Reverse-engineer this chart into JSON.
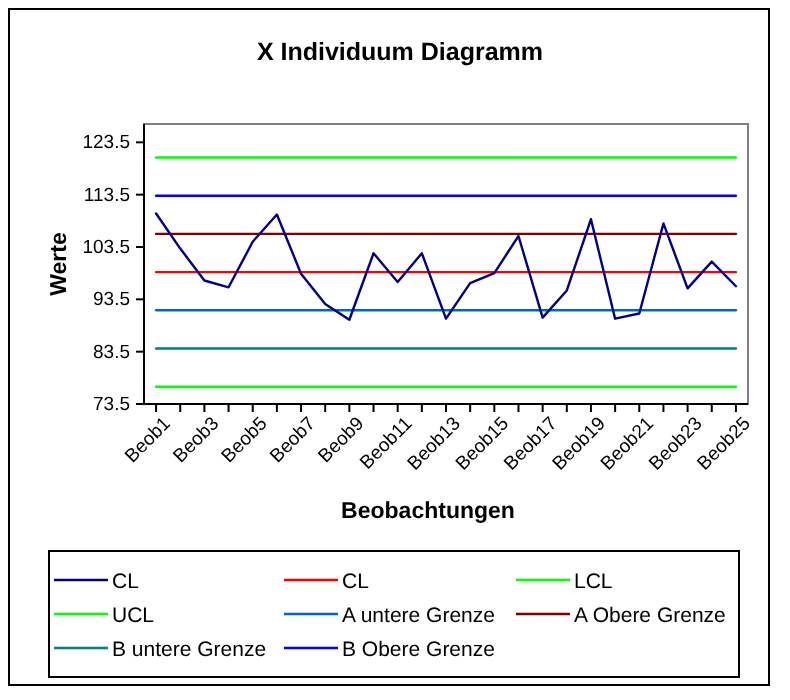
{
  "chart_data": {
    "type": "line",
    "title": "X Individuum Diagramm",
    "xlabel": "Beobachtungen",
    "ylabel": "Werte",
    "categories": [
      "Beob1",
      null,
      "Beob3",
      null,
      "Beob5",
      null,
      "Beob7",
      null,
      "Beob9",
      null,
      "Beob11",
      null,
      "Beob13",
      null,
      "Beob15",
      null,
      "Beob17",
      null,
      "Beob19",
      null,
      "Beob21",
      null,
      "Beob23",
      null,
      "Beob25"
    ],
    "series": [
      {
        "name": "CL",
        "color": "#000080",
        "values": [
          109.9,
          103.2,
          97.1,
          95.8,
          104.5,
          109.7,
          98.4,
          92.6,
          89.6,
          102.3,
          96.8,
          102.3,
          89.8,
          96.6,
          98.5,
          105.6,
          90.0,
          95.2,
          108.8,
          89.8,
          90.8,
          108.0,
          95.6,
          100.7,
          96.0
        ]
      },
      {
        "name": "CL",
        "color": "#ff0000",
        "values": [
          98.7,
          98.7,
          98.7,
          98.7,
          98.7,
          98.7,
          98.7,
          98.7,
          98.7,
          98.7,
          98.7,
          98.7,
          98.7,
          98.7,
          98.7,
          98.7,
          98.7,
          98.7,
          98.7,
          98.7,
          98.7,
          98.7,
          98.7,
          98.7,
          98.7
        ]
      },
      {
        "name": "LCL",
        "color": "#00ff00",
        "values": [
          76.8,
          76.8,
          76.8,
          76.8,
          76.8,
          76.8,
          76.8,
          76.8,
          76.8,
          76.8,
          76.8,
          76.8,
          76.8,
          76.8,
          76.8,
          76.8,
          76.8,
          76.8,
          76.8,
          76.8,
          76.8,
          76.8,
          76.8,
          76.8,
          76.8
        ]
      },
      {
        "name": "UCL",
        "color": "#00ff00",
        "values": [
          120.6,
          120.6,
          120.6,
          120.6,
          120.6,
          120.6,
          120.6,
          120.6,
          120.6,
          120.6,
          120.6,
          120.6,
          120.6,
          120.6,
          120.6,
          120.6,
          120.6,
          120.6,
          120.6,
          120.6,
          120.6,
          120.6,
          120.6,
          120.6,
          120.6
        ]
      },
      {
        "name": "A untere Grenze",
        "color": "#0066cc",
        "values": [
          91.4,
          91.4,
          91.4,
          91.4,
          91.4,
          91.4,
          91.4,
          91.4,
          91.4,
          91.4,
          91.4,
          91.4,
          91.4,
          91.4,
          91.4,
          91.4,
          91.4,
          91.4,
          91.4,
          91.4,
          91.4,
          91.4,
          91.4,
          91.4,
          91.4
        ]
      },
      {
        "name": "A Obere Grenze",
        "color": "#800000",
        "values": [
          106.0,
          106.0,
          106.0,
          106.0,
          106.0,
          106.0,
          106.0,
          106.0,
          106.0,
          106.0,
          106.0,
          106.0,
          106.0,
          106.0,
          106.0,
          106.0,
          106.0,
          106.0,
          106.0,
          106.0,
          106.0,
          106.0,
          106.0,
          106.0,
          106.0
        ]
      },
      {
        "name": "B untere Grenze",
        "color": "#008080",
        "values": [
          84.1,
          84.1,
          84.1,
          84.1,
          84.1,
          84.1,
          84.1,
          84.1,
          84.1,
          84.1,
          84.1,
          84.1,
          84.1,
          84.1,
          84.1,
          84.1,
          84.1,
          84.1,
          84.1,
          84.1,
          84.1,
          84.1,
          84.1,
          84.1,
          84.1
        ]
      },
      {
        "name": "B Obere Grenze",
        "color": "#0000ff",
        "values": [
          113.3,
          113.3,
          113.3,
          113.3,
          113.3,
          113.3,
          113.3,
          113.3,
          113.3,
          113.3,
          113.3,
          113.3,
          113.3,
          113.3,
          113.3,
          113.3,
          113.3,
          113.3,
          113.3,
          113.3,
          113.3,
          113.3,
          113.3,
          113.3,
          113.3
        ]
      }
    ],
    "ylim": [
      73.5,
      127
    ],
    "yticks": [
      73.5,
      83.5,
      93.5,
      103.5,
      113.5,
      123.5
    ],
    "grid": false,
    "legend": "bottom",
    "marker": "none",
    "line_style": "solid"
  }
}
